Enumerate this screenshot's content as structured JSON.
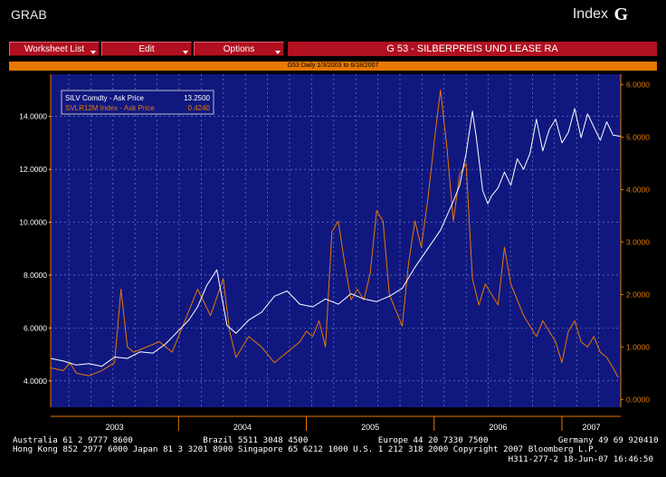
{
  "app": {
    "name": "GRAB",
    "screen_label": "Index",
    "screen_key": "G"
  },
  "toolbar": {
    "buttons": [
      {
        "label": "Worksheet List"
      },
      {
        "label": "Edit"
      },
      {
        "label": "Options"
      }
    ],
    "title": "G 53 - SILBERPREIS UND LEASE RA"
  },
  "chart_header": "G53 Daily 1/3/2003 to 6/18/2007",
  "colors": {
    "background": "#101880",
    "left_series": "#ffffff",
    "right_series": "#e87800",
    "grid": "#8090c0",
    "frame": "#e87800"
  },
  "chart_data": {
    "type": "line",
    "x_axis_labels": [
      "2003",
      "2004",
      "2005",
      "2006",
      "2007"
    ],
    "left_axis": {
      "ticks": [
        "4.0000",
        "6.0000",
        "8.0000",
        "10.0000",
        "12.0000",
        "14.0000"
      ],
      "range": [
        3.0,
        15.6
      ]
    },
    "right_axis": {
      "ticks": [
        "0.0000",
        "1.0000",
        "2.0000",
        "3.0000",
        "4.0000",
        "5.0000",
        "6.0000"
      ],
      "range": [
        -0.15,
        6.2
      ]
    },
    "legend": [
      {
        "label": "SILV Comdty - Ask Price",
        "value": "13.2500",
        "color": "#ffffff",
        "axis": "left"
      },
      {
        "label": "SVLR12M Index - Ask Price",
        "value": "0.4240",
        "color": "#e87800",
        "axis": "right"
      }
    ],
    "series": [
      {
        "name": "SILV Comdty - Ask Price",
        "axis": "left",
        "x": [
          2003.0,
          2003.1,
          2003.2,
          2003.3,
          2003.4,
          2003.5,
          2003.6,
          2003.7,
          2003.8,
          2003.9,
          2004.0,
          2004.08,
          2004.15,
          2004.22,
          2004.3,
          2004.38,
          2004.45,
          2004.55,
          2004.65,
          2004.75,
          2004.85,
          2004.95,
          2005.05,
          2005.15,
          2005.25,
          2005.35,
          2005.45,
          2005.55,
          2005.65,
          2005.75,
          2005.85,
          2005.95,
          2006.05,
          2006.15,
          2006.2,
          2006.25,
          2006.3,
          2006.33,
          2006.38,
          2006.42,
          2006.45,
          2006.5,
          2006.55,
          2006.6,
          2006.65,
          2006.7,
          2006.75,
          2006.8,
          2006.85,
          2006.9,
          2006.95,
          2007.0,
          2007.05,
          2007.1,
          2007.15,
          2007.2,
          2007.25,
          2007.3,
          2007.35,
          2007.4,
          2007.46
        ],
        "y": [
          4.85,
          4.75,
          4.6,
          4.65,
          4.55,
          4.9,
          4.85,
          5.1,
          5.05,
          5.4,
          5.9,
          6.3,
          6.8,
          7.6,
          8.2,
          6.1,
          5.8,
          6.3,
          6.6,
          7.2,
          7.4,
          6.9,
          6.8,
          7.1,
          6.9,
          7.3,
          7.1,
          7.0,
          7.2,
          7.5,
          8.3,
          9.0,
          9.7,
          10.8,
          11.4,
          12.6,
          14.2,
          13.2,
          11.2,
          10.7,
          11.0,
          11.3,
          11.9,
          11.4,
          12.4,
          12.0,
          12.6,
          13.9,
          12.7,
          13.5,
          13.9,
          13.0,
          13.4,
          14.3,
          13.2,
          14.1,
          13.6,
          13.1,
          13.8,
          13.3,
          13.25
        ]
      },
      {
        "name": "SVLR12M Index - Ask Price",
        "axis": "right",
        "x": [
          2003.0,
          2003.1,
          2003.15,
          2003.2,
          2003.3,
          2003.4,
          2003.5,
          2003.55,
          2003.6,
          2003.65,
          2003.75,
          2003.85,
          2003.95,
          2004.05,
          2004.15,
          2004.25,
          2004.35,
          2004.4,
          2004.45,
          2004.55,
          2004.65,
          2004.75,
          2004.85,
          2004.95,
          2005.0,
          2005.05,
          2005.1,
          2005.15,
          2005.2,
          2005.25,
          2005.3,
          2005.35,
          2005.4,
          2005.45,
          2005.5,
          2005.55,
          2005.6,
          2005.65,
          2005.7,
          2005.75,
          2005.8,
          2005.85,
          2005.9,
          2005.95,
          2006.0,
          2006.05,
          2006.1,
          2006.15,
          2006.2,
          2006.25,
          2006.3,
          2006.35,
          2006.4,
          2006.45,
          2006.5,
          2006.55,
          2006.6,
          2006.65,
          2006.7,
          2006.75,
          2006.8,
          2006.85,
          2006.9,
          2006.95,
          2007.0,
          2007.05,
          2007.1,
          2007.15,
          2007.2,
          2007.25,
          2007.3,
          2007.35,
          2007.4,
          2007.44
        ],
        "y": [
          0.6,
          0.55,
          0.7,
          0.5,
          0.45,
          0.55,
          0.7,
          2.1,
          1.0,
          0.9,
          1.0,
          1.1,
          0.9,
          1.5,
          2.1,
          1.6,
          2.3,
          1.3,
          0.8,
          1.2,
          1.0,
          0.7,
          0.9,
          1.1,
          1.3,
          1.2,
          1.5,
          1.0,
          3.2,
          3.4,
          2.6,
          1.9,
          2.1,
          1.9,
          2.4,
          3.6,
          3.4,
          2.0,
          1.7,
          1.4,
          2.6,
          3.4,
          2.9,
          3.8,
          4.9,
          5.9,
          4.8,
          3.4,
          4.3,
          4.5,
          2.3,
          1.8,
          2.2,
          2.0,
          1.8,
          2.9,
          2.2,
          1.9,
          1.6,
          1.4,
          1.2,
          1.5,
          1.3,
          1.1,
          0.7,
          1.3,
          1.5,
          1.1,
          1.0,
          1.2,
          0.9,
          0.8,
          0.6,
          0.42
        ]
      }
    ]
  },
  "footer": {
    "line1": "Australia 61 2 9777 8600              Brazil 5511 3048 4500              Europe 44 20 7330 7500              Germany 49 69 920410",
    "line2": "Hong Kong 852 2977 6000 Japan 81 3 3201 8900 Singapore 65 6212 1000 U.S. 1 212 318 2000 Copyright 2007 Bloomberg L.P.",
    "line3": "H311-277-2 18-Jun-07 16:46:50"
  }
}
